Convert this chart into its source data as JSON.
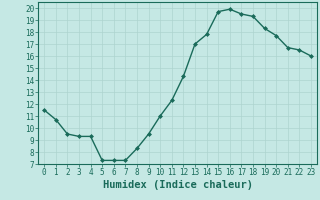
{
  "x": [
    0,
    1,
    2,
    3,
    4,
    5,
    6,
    7,
    8,
    9,
    10,
    11,
    12,
    13,
    14,
    15,
    16,
    17,
    18,
    19,
    20,
    21,
    22,
    23
  ],
  "y": [
    11.5,
    10.7,
    9.5,
    9.3,
    9.3,
    7.3,
    7.3,
    7.3,
    8.3,
    9.5,
    11.0,
    12.3,
    14.3,
    17.0,
    17.8,
    19.7,
    19.9,
    19.5,
    19.3,
    18.3,
    17.7,
    16.7,
    16.5,
    16.0
  ],
  "line_color": "#1a6b5a",
  "marker": "D",
  "markersize": 2.0,
  "linewidth": 1.0,
  "bg_color": "#c5e8e4",
  "grid_color": "#aed4cf",
  "xlabel": "Humidex (Indice chaleur)",
  "xlim": [
    -0.5,
    23.5
  ],
  "ylim": [
    7,
    20.5
  ],
  "yticks": [
    7,
    8,
    9,
    10,
    11,
    12,
    13,
    14,
    15,
    16,
    17,
    18,
    19,
    20
  ],
  "xticks": [
    0,
    1,
    2,
    3,
    4,
    5,
    6,
    7,
    8,
    9,
    10,
    11,
    12,
    13,
    14,
    15,
    16,
    17,
    18,
    19,
    20,
    21,
    22,
    23
  ],
  "tick_color": "#1a6b5a",
  "label_color": "#1a6b5a",
  "xlabel_fontsize": 7.5,
  "tick_fontsize": 5.5
}
